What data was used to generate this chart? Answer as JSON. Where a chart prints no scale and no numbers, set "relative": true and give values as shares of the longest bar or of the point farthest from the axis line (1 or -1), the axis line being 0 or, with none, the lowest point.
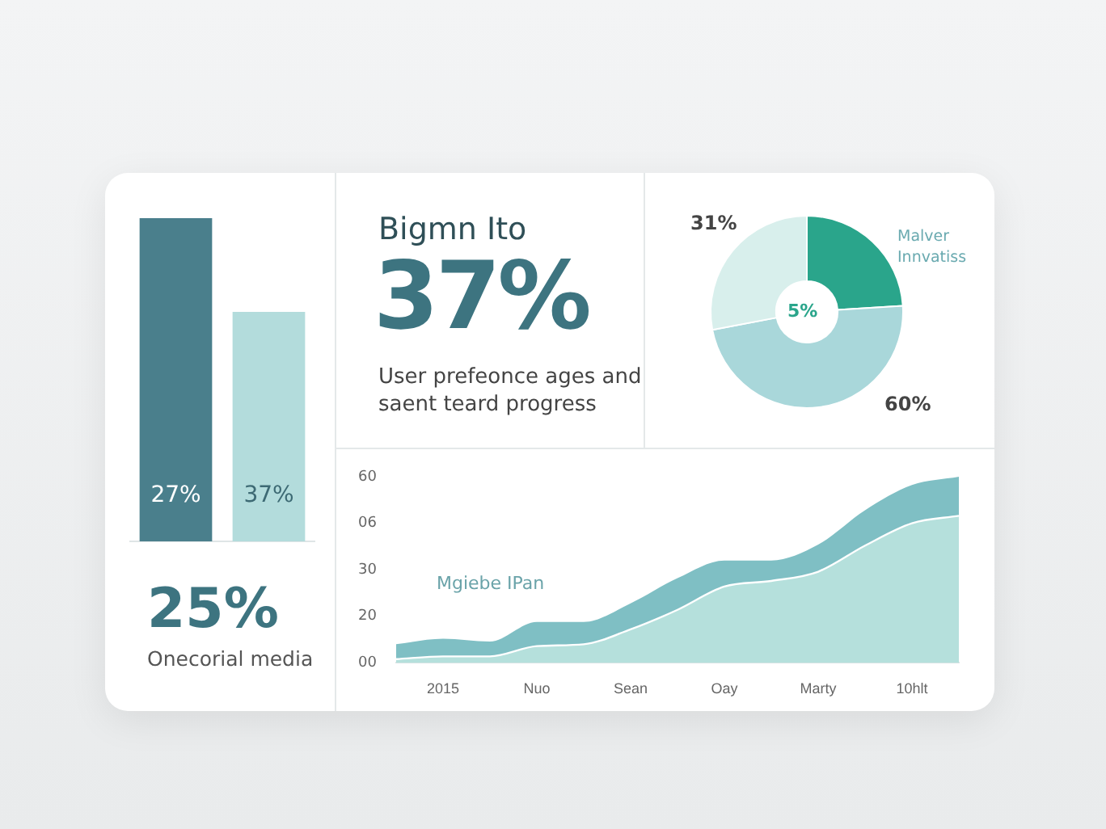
{
  "chart_data": [
    {
      "type": "bar",
      "relative": true,
      "categories": [
        null,
        null
      ],
      "values": [
        1,
        0.71
      ],
      "colors": [
        "#4a7f8c",
        "#b3dcdc"
      ],
      "annotations": [
        "27%",
        "37%",
        "25%",
        "Onecorial media"
      ]
    },
    {
      "type": "other",
      "title": "Bigmn Ito",
      "subtitle": "37%",
      "annotations": [
        "User prefeonce ages and saent teard progress"
      ]
    },
    {
      "type": "donut",
      "categories": [
        null,
        null,
        null
      ],
      "values": [
        24,
        48,
        28
      ],
      "colors": [
        "#2aa58b",
        "#a9d7da",
        "#d8efec"
      ],
      "annotations": [
        "31%",
        "5%",
        "60%",
        "Malver Innvatiss"
      ]
    },
    {
      "type": "area",
      "stacked": true,
      "relative": true,
      "categories": [
        null,
        "2015",
        null,
        "Nuo",
        null,
        "Sean",
        null,
        "Oay",
        null,
        "Marty",
        null,
        "10hlt",
        null
      ],
      "series": [
        {
          "color": "#b5e0dc",
          "values": [
            0.02,
            0.035,
            0.035,
            0.09,
            0.1,
            0.18,
            0.285,
            0.41,
            0.44,
            0.49,
            0.63,
            0.75,
            0.79
          ]
        },
        {
          "color": "#7fbfc4",
          "values": [
            0.08,
            0.095,
            0.08,
            0.13,
            0.12,
            0.14,
            0.17,
            0.14,
            0.11,
            0.145,
            0.19,
            0.205,
            0.21
          ]
        }
      ],
      "annotations": [
        "Mgiebe IPan",
        "60",
        "06",
        "30",
        "20",
        "00"
      ]
    }
  ]
}
